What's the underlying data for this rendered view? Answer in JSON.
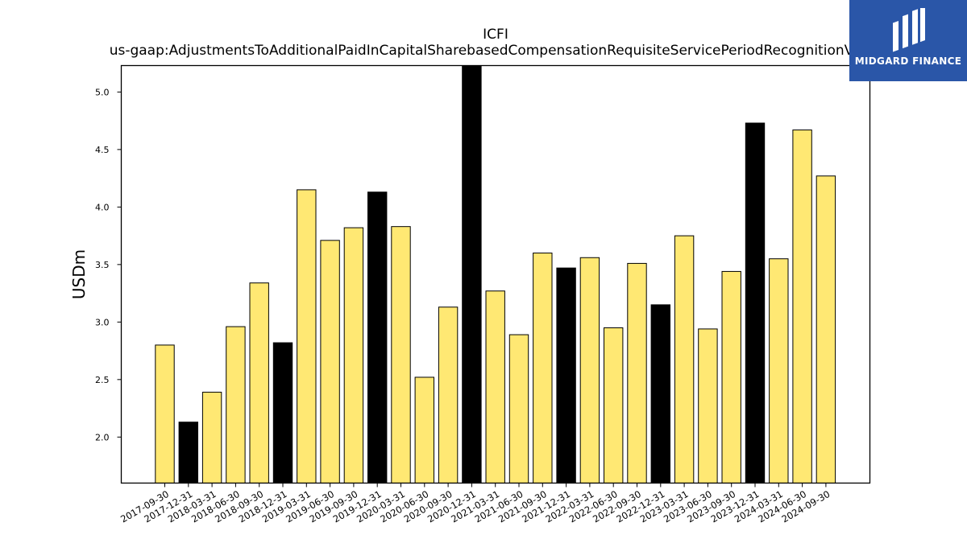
{
  "chart_data": {
    "type": "bar",
    "title": "ICFI",
    "subtitle": "us-gaap:AdjustmentsToAdditionalPaidInCapitalSharebasedCompensationRequisiteServicePeriodRecognitionValue",
    "xlabel": "",
    "ylabel": "USDm",
    "ylim": [
      1.6,
      5.23
    ],
    "yticks": [
      2.0,
      2.5,
      3.0,
      3.5,
      4.0,
      4.5,
      5.0
    ],
    "ytick_labels": [
      "2.0",
      "2.5",
      "3.0",
      "3.5",
      "4.0",
      "4.5",
      "5.0"
    ],
    "grid": false,
    "categories": [
      "2017-09-30",
      "2017-12-31",
      "2018-03-31",
      "2018-06-30",
      "2018-09-30",
      "2018-12-31",
      "2019-03-31",
      "2019-06-30",
      "2019-09-30",
      "2019-12-31",
      "2020-03-31",
      "2020-06-30",
      "2020-09-30",
      "2020-12-31",
      "2021-03-31",
      "2021-06-30",
      "2021-09-30",
      "2021-12-31",
      "2022-03-31",
      "2022-06-30",
      "2022-09-30",
      "2022-12-31",
      "2023-03-31",
      "2023-06-30",
      "2023-09-30",
      "2023-12-31",
      "2024-03-31",
      "2024-06-30",
      "2024-09-30"
    ],
    "values": [
      2.8,
      2.13,
      2.39,
      2.96,
      3.34,
      2.82,
      4.15,
      3.71,
      3.82,
      4.13,
      3.83,
      2.52,
      3.13,
      5.25,
      3.27,
      2.89,
      3.6,
      3.47,
      3.56,
      2.95,
      3.51,
      3.15,
      3.75,
      2.94,
      3.44,
      4.73,
      3.55,
      4.67,
      4.27
    ],
    "bar_colors": [
      "#ffe873",
      "#000000",
      "#ffe873",
      "#ffe873",
      "#ffe873",
      "#000000",
      "#ffe873",
      "#ffe873",
      "#ffe873",
      "#000000",
      "#ffe873",
      "#ffe873",
      "#ffe873",
      "#000000",
      "#ffe873",
      "#ffe873",
      "#ffe873",
      "#000000",
      "#ffe873",
      "#ffe873",
      "#ffe873",
      "#000000",
      "#ffe873",
      "#ffe873",
      "#ffe873",
      "#000000",
      "#ffe873",
      "#ffe873",
      "#ffe873"
    ],
    "colors": {
      "quarter_bar": "#ffe873",
      "year_end_bar": "#000000",
      "bar_edge": "#000000"
    }
  },
  "logo": {
    "text": "MIDGARD FINANCE",
    "background": "#2a56a8"
  }
}
